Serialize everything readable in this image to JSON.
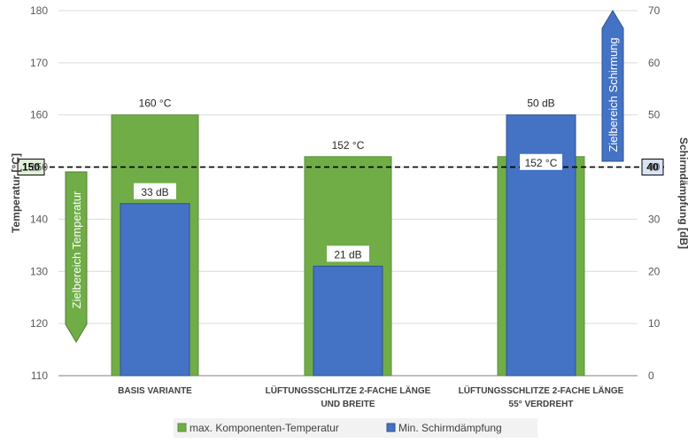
{
  "chart_data": {
    "type": "bar",
    "categories": [
      [
        "BASIS VARIANTE"
      ],
      [
        "LÜFTUNGSSCHLITZE 2-FACHE LÄNGE",
        "UND BREITE"
      ],
      [
        "LÜFTUNGSSCHLITZE 2-FACHE LÄNGE",
        "55° VERDREHT"
      ]
    ],
    "series": [
      {
        "name": "max. Komponenten-Temperatur",
        "axis": "left",
        "values": [
          160,
          152,
          152
        ],
        "labels": [
          "160 °C",
          "152 °C",
          "152 °C"
        ],
        "color": "#70ad47"
      },
      {
        "name": "Min. Schirmdämpfung",
        "axis": "right",
        "values": [
          33,
          21,
          50
        ],
        "labels": [
          "33 dB",
          "21 dB",
          "50 dB"
        ],
        "color": "#4472c4"
      }
    ],
    "ylabel_left": "Temperatur [°C]",
    "ylabel_right": "Schirmdämpfung [dB]",
    "ylim_left": [
      110,
      180
    ],
    "ylim_right": [
      0,
      70
    ],
    "yticks_left": [
      110,
      120,
      130,
      140,
      150,
      160,
      170,
      180
    ],
    "yticks_right": [
      0,
      10,
      20,
      30,
      40,
      50,
      60,
      70
    ],
    "grid": true,
    "legend_position": "bottom",
    "reference_line": {
      "left_value": 150,
      "right_value": 40,
      "left_label": "150",
      "right_label": "40"
    },
    "annotations": {
      "target_temperature": "Zielbereich Temperatur",
      "target_shielding": "Zielbereich  Schirmung"
    }
  }
}
